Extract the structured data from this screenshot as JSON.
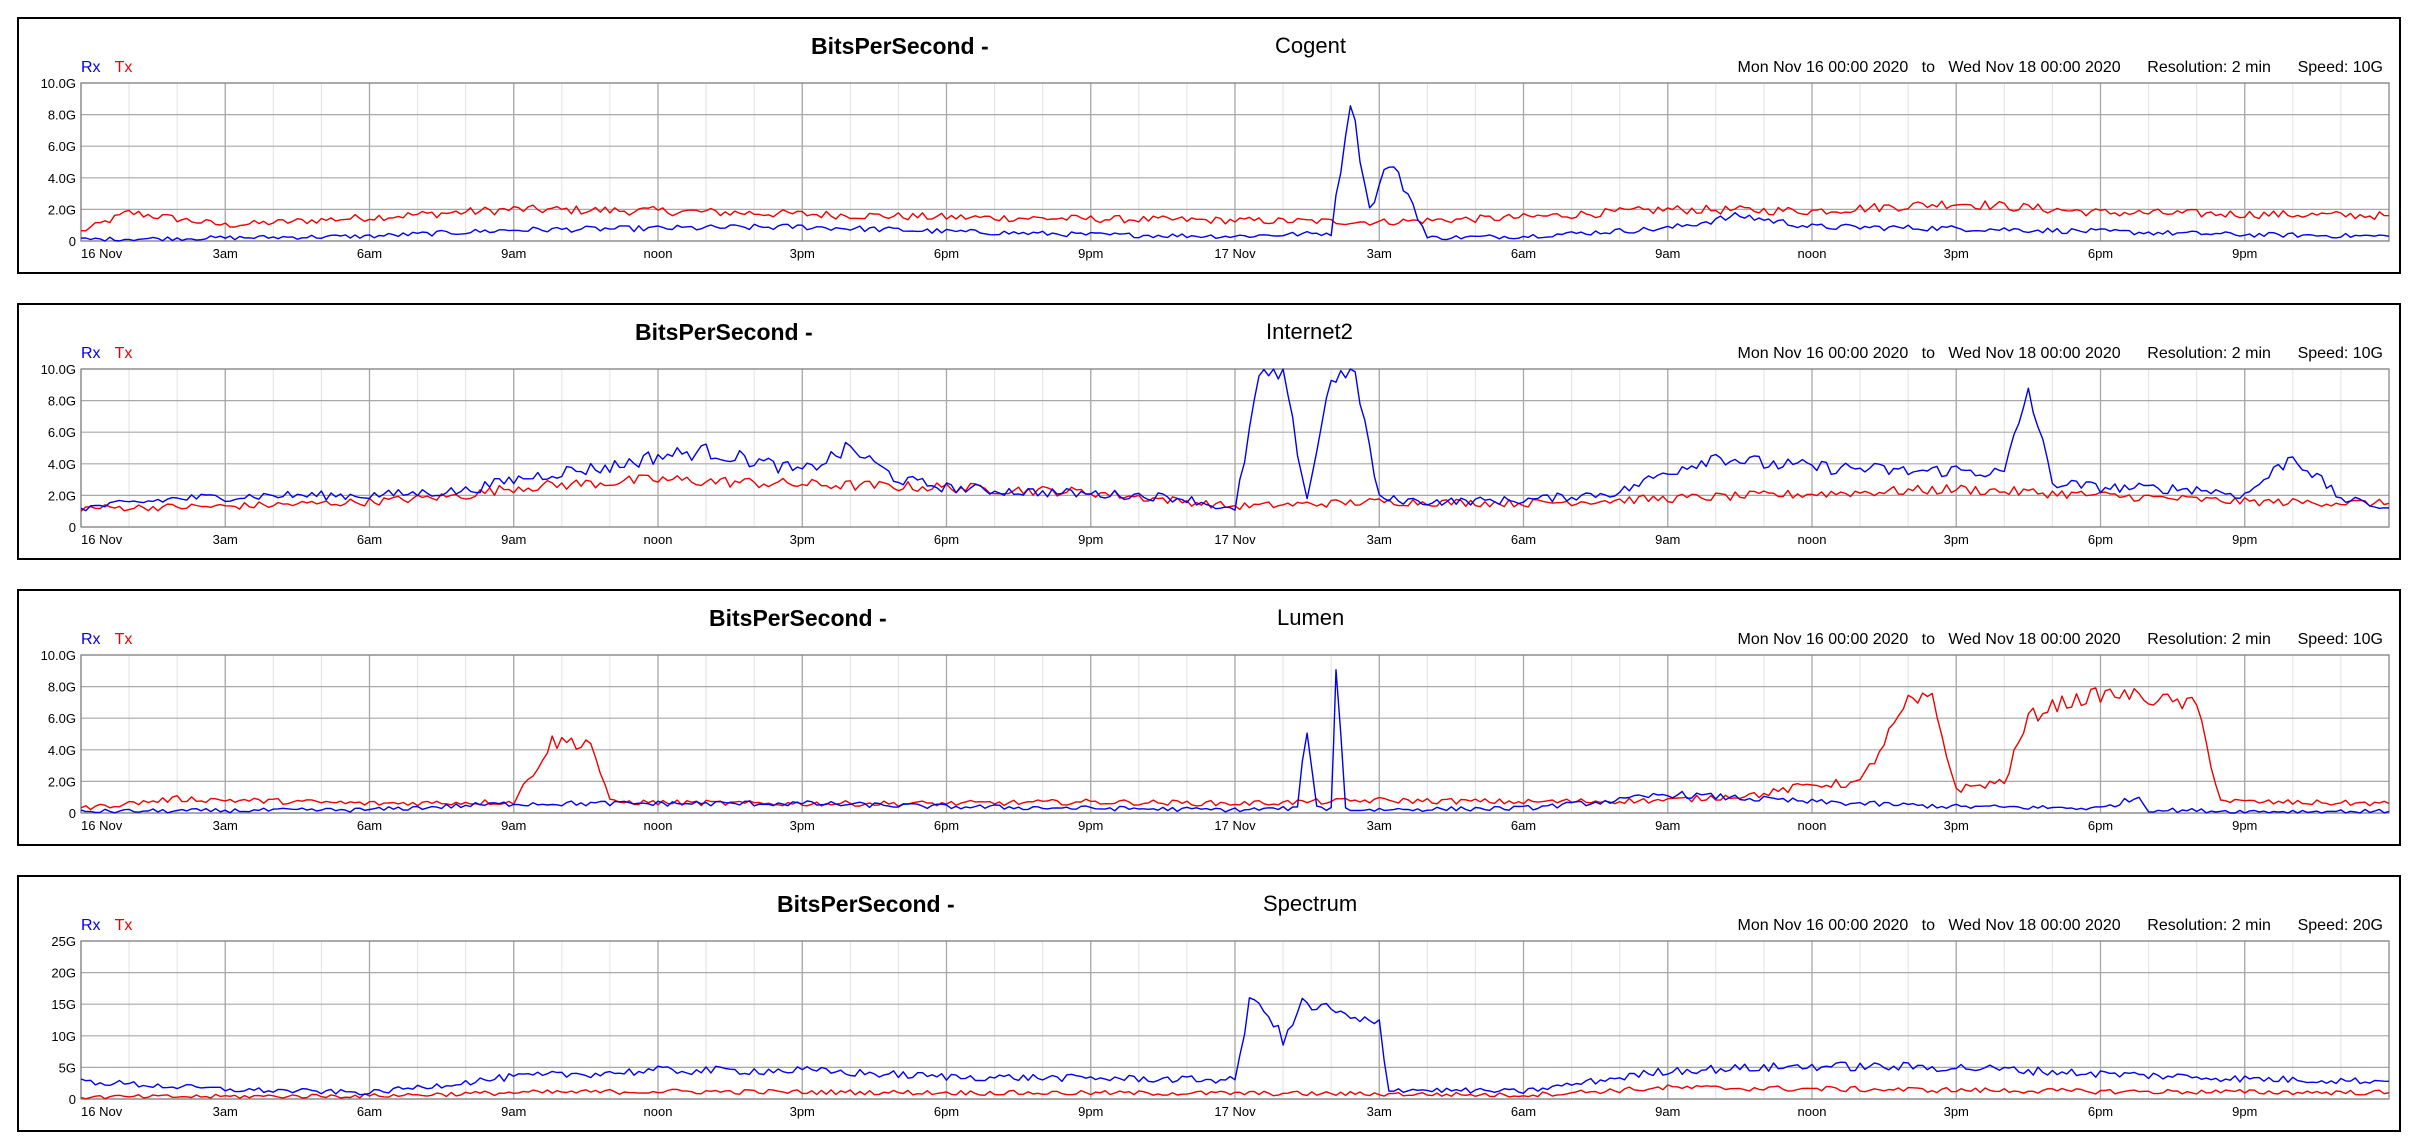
{
  "panels": [
    {
      "metric": "BitsPerSecond -",
      "provider": "Cogent",
      "legend_rx": "Rx",
      "legend_tx": "Tx",
      "range_from": "Mon Nov 16 00:00 2020",
      "range_to": "Wed Nov 18 00:00 2020",
      "range_sep": "to",
      "resolution": "Resolution: 2 min",
      "speed": "Speed: 10G"
    },
    {
      "metric": "BitsPerSecond -",
      "provider": "Internet2",
      "legend_rx": "Rx",
      "legend_tx": "Tx",
      "range_from": "Mon Nov 16 00:00 2020",
      "range_to": "Wed Nov 18 00:00 2020",
      "range_sep": "to",
      "resolution": "Resolution: 2 min",
      "speed": "Speed: 10G"
    },
    {
      "metric": "BitsPerSecond -",
      "provider": "Lumen",
      "legend_rx": "Rx",
      "legend_tx": "Tx",
      "range_from": "Mon Nov 16 00:00 2020",
      "range_to": "Wed Nov 18 00:00 2020",
      "range_sep": "to",
      "resolution": "Resolution: 2 min",
      "speed": "Speed: 10G"
    },
    {
      "metric": "BitsPerSecond -",
      "provider": "Spectrum",
      "legend_rx": "Rx",
      "legend_tx": "Tx",
      "range_from": "Mon Nov 16 00:00 2020",
      "range_to": "Wed Nov 18 00:00 2020",
      "range_sep": "to",
      "resolution": "Resolution: 2 min",
      "speed": "Speed: 20G"
    }
  ],
  "chart_data": [
    {
      "type": "line",
      "title": "BitsPerSecond - Cogent",
      "x_unit": "hours since 16 Nov 00:00",
      "xlim": [
        0,
        48
      ],
      "x_ticks": [
        0,
        3,
        6,
        9,
        12,
        15,
        18,
        21,
        24,
        27,
        30,
        33,
        36,
        39,
        42,
        45
      ],
      "x_tick_labels": [
        "16 Nov",
        "3am",
        "6am",
        "9am",
        "noon",
        "3pm",
        "6pm",
        "9pm",
        "17 Nov",
        "3am",
        "6am",
        "9am",
        "noon",
        "3pm",
        "6pm",
        "9pm"
      ],
      "y_ticks": [
        0,
        2,
        4,
        6,
        8,
        10
      ],
      "y_tick_labels": [
        "0",
        "2.0G",
        "4.0G",
        "6.0G",
        "8.0G",
        "10.0G"
      ],
      "ylim": [
        0,
        10
      ],
      "grid": true,
      "series": [
        {
          "name": "Rx",
          "color": "#0000ee",
          "x": [
            0,
            3,
            6,
            9,
            12,
            15,
            18,
            21,
            24,
            26,
            26.4,
            26.8,
            27.2,
            27.6,
            28,
            30,
            33,
            34.5,
            36,
            39,
            42,
            45,
            48
          ],
          "y": [
            0.1,
            0.2,
            0.3,
            0.7,
            0.8,
            0.9,
            0.6,
            0.4,
            0.3,
            0.5,
            9.0,
            2.0,
            5.0,
            3.0,
            0.2,
            0.3,
            0.8,
            1.6,
            0.9,
            0.8,
            0.6,
            0.4,
            0.3
          ]
        },
        {
          "name": "Tx",
          "color": "#ee0000",
          "x": [
            0,
            1,
            3,
            6,
            9,
            12,
            15,
            18,
            21,
            24,
            27,
            30,
            33,
            36,
            39,
            42,
            45,
            48
          ],
          "y": [
            0.6,
            1.8,
            1.0,
            1.5,
            2.0,
            1.9,
            1.7,
            1.5,
            1.4,
            1.3,
            1.2,
            1.5,
            2.0,
            1.9,
            2.4,
            1.8,
            1.7,
            1.6
          ]
        }
      ]
    },
    {
      "type": "line",
      "title": "BitsPerSecond - Internet2",
      "x_unit": "hours since 16 Nov 00:00",
      "xlim": [
        0,
        48
      ],
      "x_ticks": [
        0,
        3,
        6,
        9,
        12,
        15,
        18,
        21,
        24,
        27,
        30,
        33,
        36,
        39,
        42,
        45
      ],
      "x_tick_labels": [
        "16 Nov",
        "3am",
        "6am",
        "9am",
        "noon",
        "3pm",
        "6pm",
        "9pm",
        "17 Nov",
        "3am",
        "6am",
        "9am",
        "noon",
        "3pm",
        "6pm",
        "9pm"
      ],
      "y_ticks": [
        0,
        2,
        4,
        6,
        8,
        10
      ],
      "y_tick_labels": [
        "0",
        "2.0G",
        "4.0G",
        "6.0G",
        "8.0G",
        "10.0G"
      ],
      "ylim": [
        0,
        10
      ],
      "grid": true,
      "series": [
        {
          "name": "Rx",
          "color": "#0000ee",
          "x": [
            0,
            2,
            4,
            6,
            8,
            9,
            10,
            11,
            12,
            13,
            14,
            15,
            16,
            17,
            18,
            19,
            20,
            21,
            22,
            23,
            24,
            24.5,
            25,
            25.5,
            26,
            26.5,
            27,
            27.5,
            28,
            30,
            32,
            33,
            34,
            35,
            36,
            37,
            38,
            39,
            40,
            40.5,
            41,
            42,
            44,
            45,
            46,
            47,
            48
          ],
          "y": [
            1.2,
            1.8,
            2.0,
            2.0,
            2.3,
            3.0,
            3.5,
            3.8,
            4.5,
            4.8,
            4.2,
            3.5,
            5.0,
            3.0,
            2.5,
            2.3,
            2.2,
            2.1,
            2.0,
            1.8,
            1.0,
            9.5,
            9.6,
            1.8,
            9.5,
            9.7,
            1.8,
            1.7,
            1.6,
            1.7,
            2.2,
            3.5,
            4.5,
            4.0,
            3.8,
            3.7,
            3.5,
            3.6,
            3.4,
            8.7,
            2.8,
            2.5,
            2.4,
            2.0,
            4.5,
            1.8,
            1.2
          ]
        },
        {
          "name": "Tx",
          "color": "#ee0000",
          "x": [
            0,
            3,
            6,
            8,
            9,
            12,
            15,
            18,
            21,
            24,
            27,
            30,
            33,
            36,
            39,
            42,
            45,
            48
          ],
          "y": [
            1.2,
            1.3,
            1.6,
            2.0,
            2.5,
            3.0,
            2.7,
            2.5,
            2.2,
            1.3,
            1.6,
            1.5,
            1.8,
            2.1,
            2.4,
            2.0,
            1.6,
            1.5
          ]
        }
      ]
    },
    {
      "type": "line",
      "title": "BitsPerSecond - Lumen",
      "x_unit": "hours since 16 Nov 00:00",
      "xlim": [
        0,
        48
      ],
      "x_ticks": [
        0,
        3,
        6,
        9,
        12,
        15,
        18,
        21,
        24,
        27,
        30,
        33,
        36,
        39,
        42,
        45
      ],
      "x_tick_labels": [
        "16 Nov",
        "3am",
        "6am",
        "9am",
        "noon",
        "3pm",
        "6pm",
        "9pm",
        "17 Nov",
        "3am",
        "6am",
        "9am",
        "noon",
        "3pm",
        "6pm",
        "9pm"
      ],
      "y_ticks": [
        0,
        2,
        4,
        6,
        8,
        10
      ],
      "y_tick_labels": [
        "0",
        "2.0G",
        "4.0G",
        "6.0G",
        "8.0G",
        "10.0G"
      ],
      "ylim": [
        0,
        10
      ],
      "grid": true,
      "series": [
        {
          "name": "Rx",
          "color": "#0000ee",
          "x": [
            0,
            6,
            9,
            12,
            15,
            18,
            21,
            24,
            25.3,
            25.5,
            25.7,
            26,
            26.1,
            26.3,
            26.5,
            30,
            32,
            33,
            36,
            39,
            42,
            42.8,
            43,
            45,
            48
          ],
          "y": [
            0.1,
            0.2,
            0.6,
            0.6,
            0.6,
            0.4,
            0.3,
            0.2,
            0.3,
            5.5,
            0.3,
            0.3,
            9.2,
            0.3,
            0.2,
            0.3,
            0.8,
            1.2,
            0.7,
            0.4,
            0.3,
            1.0,
            0.2,
            0.1,
            0.1
          ]
        },
        {
          "name": "Tx",
          "color": "#ee0000",
          "x": [
            0,
            2,
            6,
            9,
            9.8,
            10.6,
            11,
            14,
            18,
            21,
            24,
            27,
            30,
            33,
            35,
            36,
            37,
            38,
            38.5,
            39,
            40,
            40.5,
            41,
            42,
            42.5,
            44,
            44.5,
            45,
            48
          ],
          "y": [
            0.3,
            0.9,
            0.6,
            0.7,
            4.5,
            4.5,
            0.7,
            0.6,
            0.6,
            0.7,
            0.6,
            0.8,
            0.7,
            0.8,
            1.2,
            1.8,
            1.9,
            7.0,
            7.2,
            1.5,
            2.0,
            6.0,
            6.8,
            7.5,
            7.5,
            6.8,
            0.8,
            0.7,
            0.6
          ]
        }
      ]
    },
    {
      "type": "line",
      "title": "BitsPerSecond - Spectrum",
      "x_unit": "hours since 16 Nov 00:00",
      "xlim": [
        0,
        48
      ],
      "x_ticks": [
        0,
        3,
        6,
        9,
        12,
        15,
        18,
        21,
        24,
        27,
        30,
        33,
        36,
        39,
        42,
        45
      ],
      "x_tick_labels": [
        "16 Nov",
        "3am",
        "6am",
        "9am",
        "noon",
        "3pm",
        "6pm",
        "9pm",
        "17 Nov",
        "3am",
        "6am",
        "9am",
        "noon",
        "3pm",
        "6pm",
        "9pm"
      ],
      "y_ticks": [
        0,
        5,
        10,
        15,
        20,
        25
      ],
      "y_tick_labels": [
        "0",
        "5G",
        "10G",
        "15G",
        "20G",
        "25G"
      ],
      "ylim": [
        0,
        25
      ],
      "grid": true,
      "series": [
        {
          "name": "Rx",
          "color": "#0000ee",
          "x": [
            0,
            3,
            6,
            9,
            12,
            15,
            18,
            21,
            24,
            24.3,
            24.6,
            25,
            25.4,
            26,
            26.6,
            27,
            27.2,
            30,
            33,
            36,
            39,
            42,
            45,
            48
          ],
          "y": [
            2.8,
            1.5,
            1.0,
            3.5,
            4.5,
            4.5,
            3.5,
            3.3,
            3.0,
            15,
            15,
            9,
            15,
            14,
            12,
            12,
            1.5,
            1.2,
            4.5,
            5.2,
            5.0,
            4.0,
            3.2,
            2.8
          ]
        },
        {
          "name": "Tx",
          "color": "#ee0000",
          "x": [
            0,
            6,
            9,
            12,
            18,
            24,
            27,
            30,
            33,
            36,
            42,
            48
          ],
          "y": [
            0.3,
            0.5,
            1.0,
            1.2,
            1.0,
            0.9,
            0.8,
            0.6,
            1.8,
            1.6,
            1.2,
            1.0
          ]
        }
      ]
    }
  ]
}
